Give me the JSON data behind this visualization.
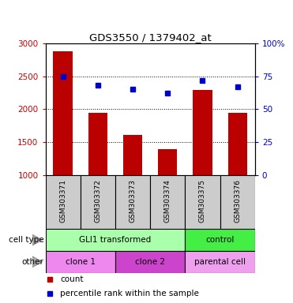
{
  "title": "GDS3550 / 1379402_at",
  "samples": [
    "GSM303371",
    "GSM303372",
    "GSM303373",
    "GSM303374",
    "GSM303375",
    "GSM303376"
  ],
  "counts": [
    2880,
    1950,
    1610,
    1390,
    2290,
    1940
  ],
  "percentiles": [
    75,
    68,
    65,
    62,
    72,
    67
  ],
  "ylim_left": [
    1000,
    3000
  ],
  "ylim_right": [
    0,
    100
  ],
  "yticks_left": [
    1000,
    1500,
    2000,
    2500,
    3000
  ],
  "yticks_right": [
    0,
    25,
    50,
    75,
    100
  ],
  "ytick_right_labels": [
    "0",
    "25",
    "50",
    "75",
    "100%"
  ],
  "bar_color": "#bb0000",
  "dot_color": "#0000cc",
  "cell_type_labels": [
    {
      "text": "GLI1 transformed",
      "start": 0,
      "end": 4,
      "color": "#aaffaa"
    },
    {
      "text": "control",
      "start": 4,
      "end": 6,
      "color": "#44ee44"
    }
  ],
  "other_labels": [
    {
      "text": "clone 1",
      "start": 0,
      "end": 2,
      "color": "#ee88ee"
    },
    {
      "text": "clone 2",
      "start": 2,
      "end": 4,
      "color": "#cc44cc"
    },
    {
      "text": "parental cell",
      "start": 4,
      "end": 6,
      "color": "#eea0ee"
    }
  ],
  "row_label_cell_type": "cell type",
  "row_label_other": "other",
  "legend_count_color": "#bb0000",
  "legend_percentile_color": "#0000cc",
  "left_tick_color": "#cc0000",
  "right_tick_color": "#0000cc",
  "bg_color": "#ffffff",
  "tick_area_color": "#cccccc",
  "grid_yticks": [
    1500,
    2000,
    2500
  ]
}
